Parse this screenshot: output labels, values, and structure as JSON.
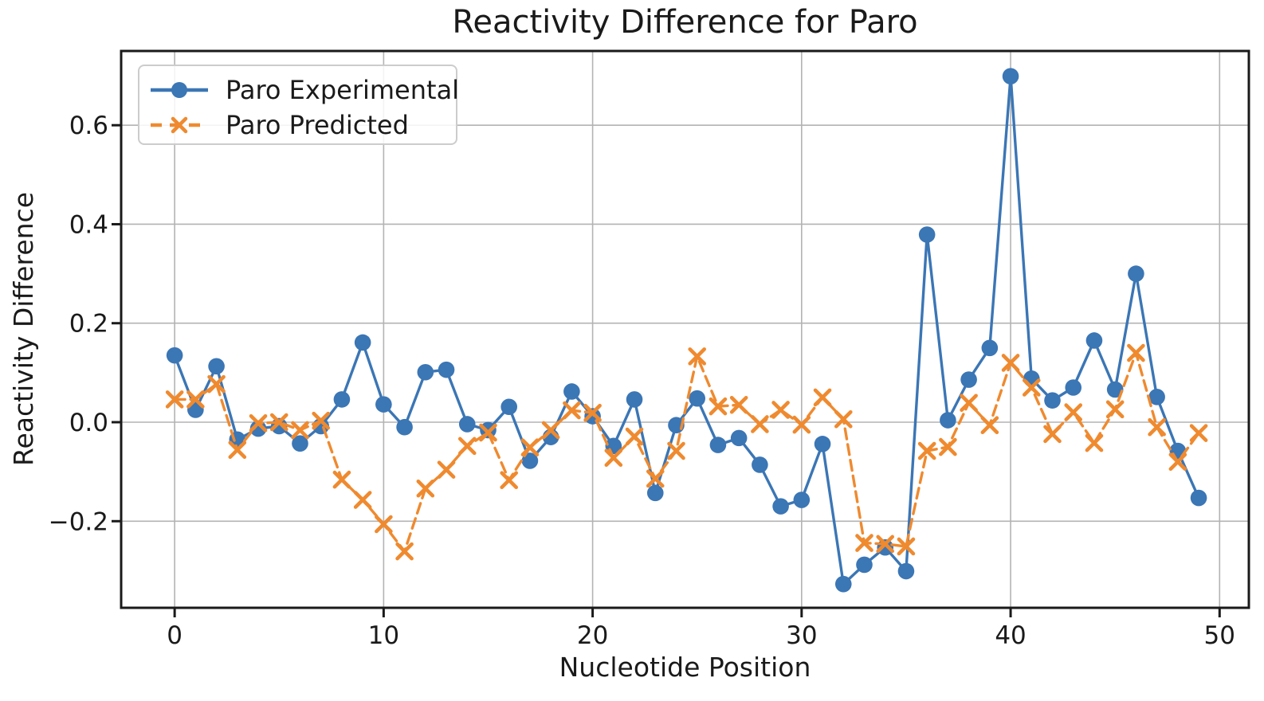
{
  "chart_data": {
    "type": "line",
    "title": "Reactivity Difference for Paro",
    "xlabel": "Nucleotide Position",
    "ylabel": "Reactivity Difference",
    "x": [
      0,
      1,
      2,
      3,
      4,
      5,
      6,
      7,
      8,
      9,
      10,
      11,
      12,
      13,
      14,
      15,
      16,
      17,
      18,
      19,
      20,
      21,
      22,
      23,
      24,
      25,
      26,
      27,
      28,
      29,
      30,
      31,
      32,
      33,
      34,
      35,
      36,
      37,
      38,
      39,
      40,
      41,
      42,
      43,
      44,
      45,
      46,
      47,
      48,
      49
    ],
    "series": [
      {
        "name": "Paro Experimental",
        "color": "#3b76b5",
        "line_style": "solid",
        "marker": "circle",
        "values": [
          0.135,
          0.025,
          0.113,
          -0.035,
          -0.013,
          -0.008,
          -0.043,
          -0.008,
          0.046,
          0.161,
          0.036,
          -0.01,
          0.101,
          0.106,
          -0.004,
          -0.016,
          0.031,
          -0.078,
          -0.03,
          0.062,
          0.012,
          -0.048,
          0.046,
          -0.143,
          -0.006,
          0.048,
          -0.046,
          -0.032,
          -0.086,
          -0.17,
          -0.157,
          -0.044,
          -0.327,
          -0.288,
          -0.253,
          -0.301,
          0.379,
          0.004,
          0.086,
          0.15,
          0.699,
          0.088,
          0.044,
          0.07,
          0.165,
          0.066,
          0.3,
          0.051,
          -0.058,
          -0.153
        ]
      },
      {
        "name": "Paro Predicted",
        "color": "#ef8a2f",
        "line_style": "dashed",
        "marker": "x",
        "values": [
          0.046,
          0.046,
          0.077,
          -0.056,
          -0.002,
          0.0,
          -0.016,
          0.003,
          -0.116,
          -0.157,
          -0.206,
          -0.261,
          -0.134,
          -0.096,
          -0.048,
          -0.021,
          -0.117,
          -0.051,
          -0.016,
          0.024,
          0.019,
          -0.072,
          -0.029,
          -0.114,
          -0.058,
          0.133,
          0.032,
          0.035,
          -0.004,
          0.025,
          -0.005,
          0.05,
          0.006,
          -0.244,
          -0.246,
          -0.251,
          -0.058,
          -0.05,
          0.039,
          -0.006,
          0.12,
          0.07,
          -0.024,
          0.02,
          -0.042,
          0.026,
          0.14,
          -0.01,
          -0.08,
          -0.022
        ]
      }
    ],
    "xticks": [
      0,
      10,
      20,
      30,
      40,
      50
    ],
    "xtick_labels": [
      "0",
      "10",
      "20",
      "30",
      "40",
      "50"
    ],
    "yticks": [
      -0.2,
      0.0,
      0.2,
      0.4,
      0.6
    ],
    "ytick_labels": [
      "−0.2",
      "0.0",
      "0.2",
      "0.4",
      "0.6"
    ],
    "xlim": [
      -2.56,
      51.4
    ],
    "ylim": [
      -0.375,
      0.75
    ],
    "grid": true,
    "grid_color": "#b3b3b3",
    "frame_color": "#1a1a1a",
    "text_color": "#1a1a1a",
    "legend_position": "upper left"
  }
}
